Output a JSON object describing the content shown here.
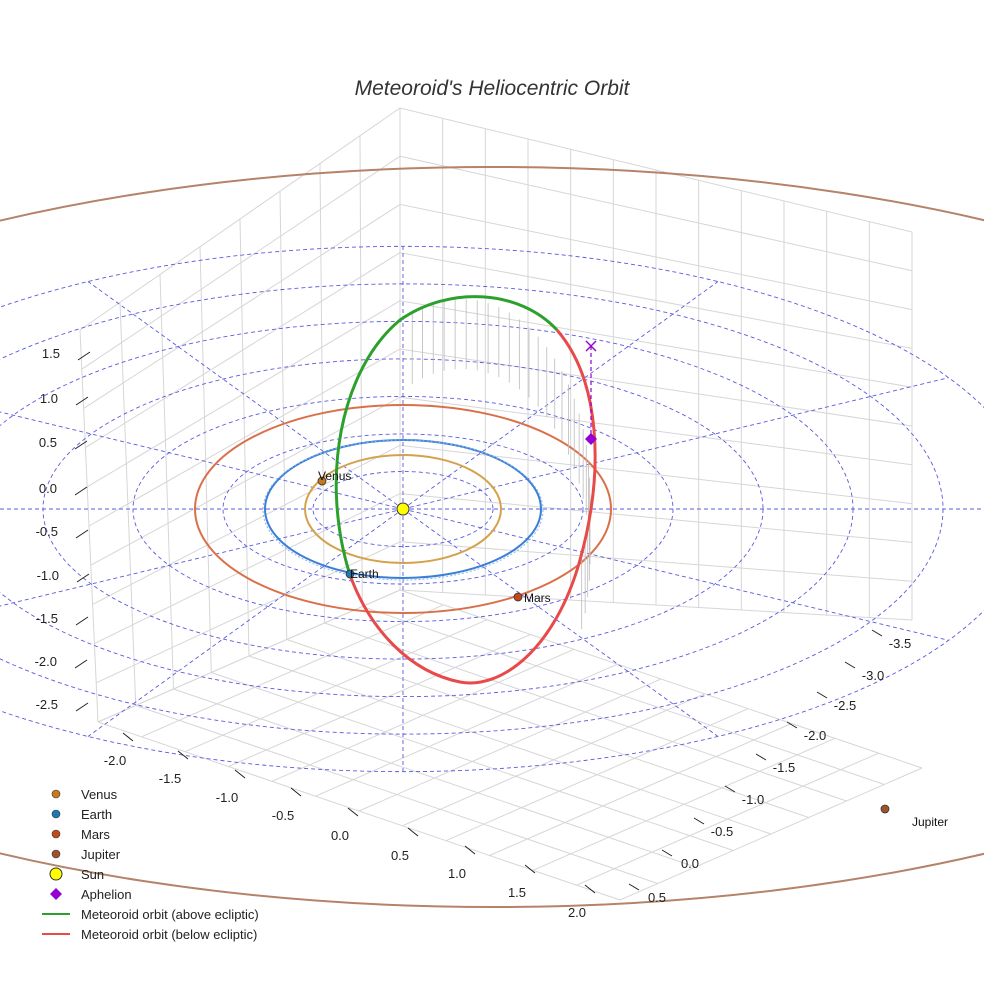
{
  "chart_data": {
    "type": "3d-orbit",
    "title": "Meteoroid's Heliocentric Orbit",
    "axes": {
      "x_ticks": [
        "-2.0",
        "-1.5",
        "-1.0",
        "-0.5",
        "0.0",
        "0.5",
        "1.0",
        "1.5",
        "2.0"
      ],
      "y_ticks": [
        "-3.5",
        "-3.0",
        "-2.5",
        "-2.0",
        "-1.5",
        "-1.0",
        "-0.5",
        "0.0",
        "0.5"
      ],
      "z_ticks": [
        "1.5",
        "1.0",
        "0.5",
        "0.0",
        "-0.5",
        "-1.0",
        "-1.5",
        "-2.0",
        "-2.5"
      ]
    },
    "planets": [
      {
        "name": "Venus",
        "label": "Venus",
        "orbit_radius_au": 0.72,
        "color": "#d4a24c",
        "marker_color": "#c8781e"
      },
      {
        "name": "Earth",
        "label": "Earth",
        "orbit_radius_au": 1.0,
        "color": "#3a7fd6",
        "marker_color": "#1f77b4"
      },
      {
        "name": "Mars",
        "label": "Mars",
        "orbit_radius_au": 1.52,
        "color": "#d9704a",
        "marker_color": "#c24a1a"
      },
      {
        "name": "Jupiter",
        "label": "Jupiter",
        "orbit_radius_au": 5.2,
        "color": "#b5826a",
        "marker_color": "#a0522d"
      }
    ],
    "ecliptic_grid_radii_au": [
      0.5,
      1.0,
      1.5,
      2.0,
      2.5,
      3.0,
      3.5
    ],
    "meteoroid": {
      "above_ecliptic_color": "#2ca02c",
      "below_ecliptic_color": "#e84a4a",
      "aphelion_color": "#9400d3"
    },
    "legend": [
      {
        "label": "Venus",
        "kind": "dot",
        "color": "#c8781e"
      },
      {
        "label": "Earth",
        "kind": "dot",
        "color": "#1f77b4"
      },
      {
        "label": "Mars",
        "kind": "dot",
        "color": "#c24a1a"
      },
      {
        "label": "Jupiter",
        "kind": "dot",
        "color": "#a0522d"
      },
      {
        "label": "Sun",
        "kind": "sun",
        "color": "#ffff00"
      },
      {
        "label": "Aphelion",
        "kind": "diamond",
        "color": "#9400d3"
      },
      {
        "label": "Meteoroid orbit (above ecliptic)",
        "kind": "line",
        "color": "#2ca02c"
      },
      {
        "label": "Meteoroid orbit (below ecliptic)",
        "kind": "line",
        "color": "#e84a4a"
      }
    ]
  }
}
